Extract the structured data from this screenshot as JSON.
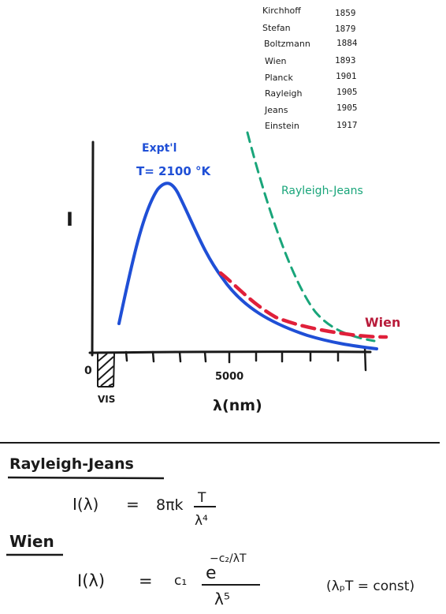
{
  "timeline": [
    {
      "name": "Kirchhoff",
      "year": "1859"
    },
    {
      "name": "Stefan",
      "year": "1879"
    },
    {
      "name": "Boltzmann",
      "year": "1884"
    },
    {
      "name": "Wien",
      "year": "1893"
    },
    {
      "name": "Planck",
      "year": "1901"
    },
    {
      "name": "Rayleigh",
      "year": "1905"
    },
    {
      "name": "Jeans",
      "year": "1905"
    },
    {
      "name": "Einstein",
      "year": "1917"
    }
  ],
  "plot": {
    "y_label": "I",
    "x_label": "λ(nm)",
    "origin_label": "0",
    "tick_5000": "5000",
    "vis_label": "VIS",
    "expt_label_1": "Expt'l",
    "expt_label_2": "T= 2100 °K",
    "rj_label": "Rayleigh-Jeans",
    "wien_label": "Wien"
  },
  "formulas": {
    "rj_title": "Rayleigh-Jeans",
    "rj_lhs": "I(λ)",
    "rj_eq": "=",
    "rj_coef": "8πk",
    "rj_num": "T",
    "rj_den": "λ⁴",
    "wien_title": "Wien",
    "wien_lhs": "I(λ)",
    "wien_eq": "=",
    "wien_coef": "c₁",
    "wien_e": "e",
    "wien_exp": "−c₂/λT",
    "wien_den": "λ⁵",
    "wien_note": "(λₚT = const)"
  },
  "colors": {
    "ink": "#1a1a1a",
    "experimental": "#1f4fd6",
    "rayleigh_jeans": "#19a57a",
    "wien": "#e0203a"
  }
}
